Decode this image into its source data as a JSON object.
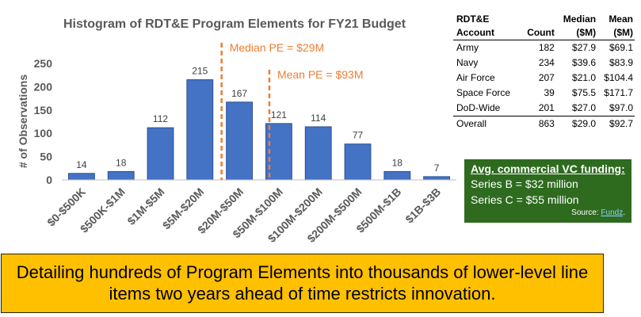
{
  "chart_data": {
    "type": "bar",
    "title": "Histogram of RDT&E Program Elements for FY21 Budget",
    "xlabel": "",
    "ylabel": "# of Observations",
    "ylim": [
      0,
      250
    ],
    "yticks": [
      0,
      50,
      100,
      150,
      200,
      250
    ],
    "categories": [
      "$0-$500K",
      "$500K-$1M",
      "$1M-$5M",
      "$5M-$20M",
      "$20M-$50M",
      "$50M-$100M",
      "$100M-$200M",
      "$200M-$500M",
      "$500M-$1B",
      "$1B-$3B"
    ],
    "values": [
      14,
      18,
      112,
      215,
      167,
      121,
      114,
      77,
      18,
      7
    ],
    "bar_color": "#4472c4",
    "annotations": [
      {
        "label": "Median PE = $29M",
        "category_position": 3.55,
        "color": "#ed7d31"
      },
      {
        "label": "Mean PE = $93M",
        "category_position": 4.76,
        "color": "#ed7d31"
      }
    ],
    "grid": false
  },
  "table": {
    "headers": [
      "RDT&E\nAccount",
      "Count",
      "Median\n($M)",
      "Mean\n($M)"
    ],
    "rows": [
      [
        "Army",
        "182",
        "$27.9",
        "$69.1"
      ],
      [
        "Navy",
        "234",
        "$39.6",
        "$83.9"
      ],
      [
        "Air Force",
        "207",
        "$21.0",
        "$104.4"
      ],
      [
        "Space Force",
        "39",
        "$75.5",
        "$171.7"
      ],
      [
        "DoD-Wide",
        "201",
        "$27.0",
        "$97.0"
      ]
    ],
    "overall": [
      "Overall",
      "863",
      "$29.0",
      "$92.7"
    ]
  },
  "vc_box": {
    "title": "Avg. commercial VC funding:",
    "line1": "Series B = $32 million",
    "line2": "Series C = $55 million",
    "source_prefix": "Source: ",
    "source_link": "Fundz",
    "source_suffix": ".",
    "background": "#2e6b1f"
  },
  "banner": {
    "text": "Detailing hundreds of Program Elements into thousands of lower-level line items two years ahead of time restricts innovation.",
    "background": "#ffc000"
  }
}
